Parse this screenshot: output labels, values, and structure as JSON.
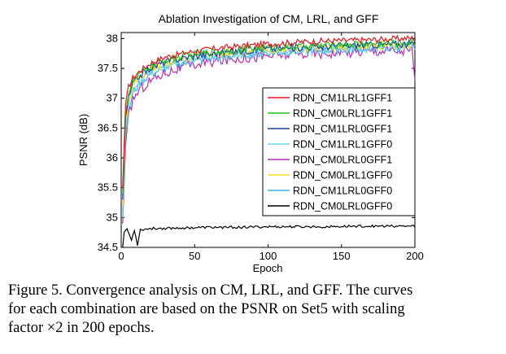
{
  "chart_data": {
    "type": "line",
    "title": "Ablation Investigation of CM, LRL, and GFF",
    "xlabel": "Epoch",
    "ylabel": "PSNR (dB)",
    "xlim": [
      0,
      200
    ],
    "ylim": [
      34.5,
      38.1
    ],
    "xticks": [
      0,
      50,
      100,
      150,
      200
    ],
    "yticks": [
      34.5,
      35,
      35.5,
      36,
      36.5,
      37,
      37.5,
      38
    ],
    "xtick_labels": [
      "0",
      "50",
      "100",
      "150",
      "200"
    ],
    "ytick_labels": [
      "34.5",
      "35",
      "35.5",
      "36",
      "36.5",
      "37",
      "37.5",
      "38"
    ],
    "grid": false,
    "legend_position": "right",
    "series": [
      {
        "name": "RDN_CM1LRL1GFF1",
        "color": "#e8141b",
        "points": [
          [
            1,
            35.5
          ],
          [
            3,
            36.9
          ],
          [
            5,
            37.2
          ],
          [
            8,
            37.35
          ],
          [
            12,
            37.45
          ],
          [
            20,
            37.6
          ],
          [
            30,
            37.7
          ],
          [
            40,
            37.75
          ],
          [
            50,
            37.8
          ],
          [
            60,
            37.83
          ],
          [
            70,
            37.86
          ],
          [
            80,
            37.88
          ],
          [
            90,
            37.9
          ],
          [
            100,
            37.92
          ],
          [
            120,
            37.95
          ],
          [
            140,
            37.97
          ],
          [
            160,
            37.98
          ],
          [
            180,
            38.0
          ],
          [
            200,
            38.02
          ]
        ],
        "noise": 0.05
      },
      {
        "name": "RDN_CM0LRL1GFF1",
        "color": "#1fbf1f",
        "points": [
          [
            1,
            35.4
          ],
          [
            3,
            36.8
          ],
          [
            5,
            37.1
          ],
          [
            8,
            37.3
          ],
          [
            12,
            37.4
          ],
          [
            20,
            37.55
          ],
          [
            30,
            37.65
          ],
          [
            40,
            37.7
          ],
          [
            50,
            37.75
          ],
          [
            60,
            37.78
          ],
          [
            70,
            37.8
          ],
          [
            80,
            37.82
          ],
          [
            90,
            37.84
          ],
          [
            100,
            37.86
          ],
          [
            120,
            37.88
          ],
          [
            140,
            37.9
          ],
          [
            160,
            37.92
          ],
          [
            180,
            37.93
          ],
          [
            200,
            37.95
          ]
        ],
        "noise": 0.06
      },
      {
        "name": "RDN_CM1LRL0GFF1",
        "color": "#1f3f9f",
        "points": [
          [
            1,
            35.3
          ],
          [
            3,
            36.7
          ],
          [
            5,
            37.0
          ],
          [
            8,
            37.25
          ],
          [
            12,
            37.38
          ],
          [
            20,
            37.52
          ],
          [
            30,
            37.62
          ],
          [
            40,
            37.68
          ],
          [
            50,
            37.72
          ],
          [
            60,
            37.75
          ],
          [
            70,
            37.78
          ],
          [
            80,
            37.8
          ],
          [
            90,
            37.82
          ],
          [
            100,
            37.84
          ],
          [
            120,
            37.86
          ],
          [
            140,
            37.88
          ],
          [
            160,
            37.9
          ],
          [
            180,
            37.91
          ],
          [
            200,
            37.93
          ]
        ],
        "noise": 0.06
      },
      {
        "name": "RDN_CM1LRL1GFF0",
        "color": "#6fd8e8",
        "points": [
          [
            1,
            35.0
          ],
          [
            3,
            36.5
          ],
          [
            5,
            36.9
          ],
          [
            8,
            37.15
          ],
          [
            12,
            37.3
          ],
          [
            20,
            37.45
          ],
          [
            30,
            37.55
          ],
          [
            40,
            37.62
          ],
          [
            50,
            37.66
          ],
          [
            60,
            37.7
          ],
          [
            70,
            37.73
          ],
          [
            80,
            37.75
          ],
          [
            90,
            37.77
          ],
          [
            100,
            37.79
          ],
          [
            120,
            37.81
          ],
          [
            140,
            37.83
          ],
          [
            160,
            37.85
          ],
          [
            180,
            37.86
          ],
          [
            200,
            37.88
          ]
        ],
        "noise": 0.07
      },
      {
        "name": "RDN_CM0LRL0GFF1",
        "color": "#b62fb2",
        "points": [
          [
            1,
            34.9
          ],
          [
            3,
            36.2
          ],
          [
            5,
            36.7
          ],
          [
            8,
            37.0
          ],
          [
            12,
            37.15
          ],
          [
            20,
            37.32
          ],
          [
            30,
            37.45
          ],
          [
            40,
            37.52
          ],
          [
            50,
            37.58
          ],
          [
            60,
            37.62
          ],
          [
            70,
            37.66
          ],
          [
            80,
            37.69
          ],
          [
            90,
            37.71
          ],
          [
            100,
            37.73
          ],
          [
            120,
            37.76
          ],
          [
            140,
            37.78
          ],
          [
            160,
            37.8
          ],
          [
            180,
            37.82
          ],
          [
            198,
            37.82
          ],
          [
            200,
            37.3
          ]
        ],
        "noise": 0.09
      },
      {
        "name": "RDN_CM0LRL1GFF0",
        "color": "#f0e020",
        "points": [
          [
            1,
            35.2
          ],
          [
            3,
            36.6
          ],
          [
            5,
            37.0
          ],
          [
            8,
            37.2
          ],
          [
            12,
            37.35
          ],
          [
            20,
            37.5
          ],
          [
            30,
            37.6
          ],
          [
            40,
            37.66
          ],
          [
            50,
            37.7
          ],
          [
            60,
            37.73
          ],
          [
            70,
            37.76
          ],
          [
            80,
            37.78
          ],
          [
            90,
            37.8
          ],
          [
            100,
            37.82
          ],
          [
            120,
            37.84
          ],
          [
            140,
            37.86
          ],
          [
            160,
            37.88
          ],
          [
            180,
            37.89
          ],
          [
            200,
            37.9
          ]
        ],
        "noise": 0.06
      },
      {
        "name": "RDN_CM1LRL0GFF0",
        "color": "#3fb4e6",
        "points": [
          [
            1,
            35.1
          ],
          [
            3,
            36.4
          ],
          [
            5,
            36.8
          ],
          [
            8,
            37.1
          ],
          [
            12,
            37.25
          ],
          [
            20,
            37.42
          ],
          [
            30,
            37.52
          ],
          [
            40,
            37.6
          ],
          [
            50,
            37.64
          ],
          [
            60,
            37.68
          ],
          [
            70,
            37.71
          ],
          [
            80,
            37.74
          ],
          [
            90,
            37.76
          ],
          [
            100,
            37.78
          ],
          [
            120,
            37.8
          ],
          [
            140,
            37.82
          ],
          [
            160,
            37.84
          ],
          [
            180,
            37.85
          ],
          [
            200,
            37.87
          ]
        ],
        "noise": 0.07
      },
      {
        "name": "RDN_CM0LRL0GFF0",
        "color": "#000000",
        "points": [
          [
            1,
            34.5
          ],
          [
            2,
            34.75
          ],
          [
            4,
            34.82
          ],
          [
            7,
            34.62
          ],
          [
            9,
            34.8
          ],
          [
            11,
            34.55
          ],
          [
            13,
            34.8
          ],
          [
            20,
            34.82
          ],
          [
            40,
            34.83
          ],
          [
            60,
            34.84
          ],
          [
            80,
            34.84
          ],
          [
            100,
            34.85
          ],
          [
            120,
            34.85
          ],
          [
            140,
            34.85
          ],
          [
            160,
            34.86
          ],
          [
            180,
            34.86
          ],
          [
            200,
            34.86
          ]
        ],
        "noise": 0.02
      }
    ]
  },
  "caption": {
    "line1": "Figure 5. Convergence analysis on CM, LRL, and GFF. The curves",
    "line2": "for each combination are based on the PSNR on Set5 with scaling",
    "line3": "factor ×2 in 200 epochs."
  }
}
